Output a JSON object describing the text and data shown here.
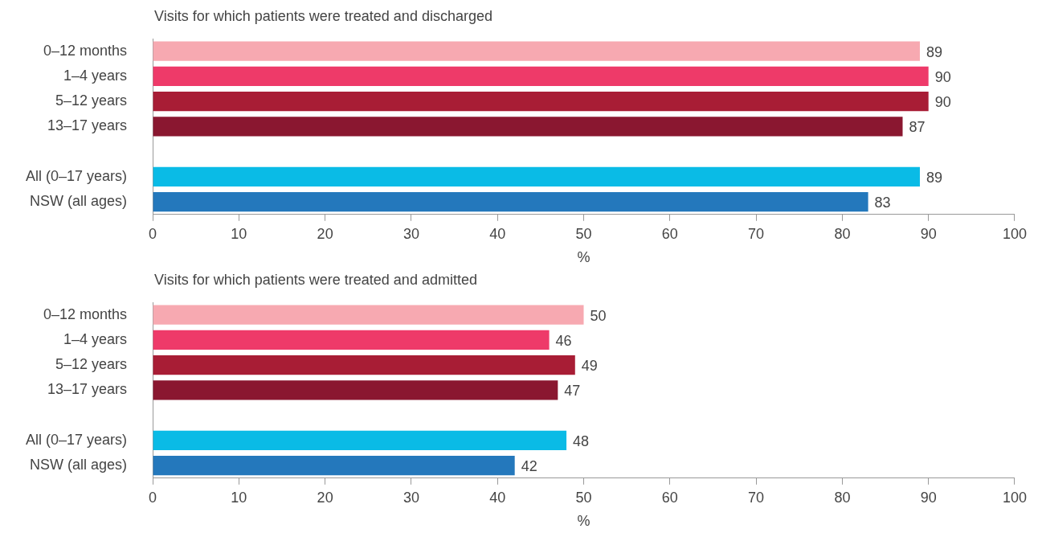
{
  "chart_data": [
    {
      "type": "bar",
      "orientation": "horizontal",
      "title": "Visits for which patients were treated and discharged",
      "xlabel": "%",
      "categories": [
        "0–12 months",
        "1–4 years",
        "5–12 years",
        "13–17 years",
        null,
        "All (0–17 years)",
        "NSW (all ages)"
      ],
      "values": [
        89,
        90,
        90,
        87,
        null,
        89,
        83
      ],
      "colors": [
        "#f7a9b1",
        "#ee3a69",
        "#a81d35",
        "#8a1730",
        null,
        "#0abbe6",
        "#2478bc"
      ],
      "xlim": [
        0,
        100
      ],
      "xticks": [
        0,
        10,
        20,
        30,
        40,
        50,
        60,
        70,
        80,
        90,
        100
      ],
      "data_labels": true,
      "grid": false,
      "legend": false
    },
    {
      "type": "bar",
      "orientation": "horizontal",
      "title": "Visits for which patients were treated and admitted",
      "xlabel": "%",
      "categories": [
        "0–12 months",
        "1–4 years",
        "5–12 years",
        "13–17 years",
        null,
        "All (0–17 years)",
        "NSW (all ages)"
      ],
      "values": [
        50,
        46,
        49,
        47,
        null,
        48,
        42
      ],
      "colors": [
        "#f7a9b1",
        "#ee3a69",
        "#a81d35",
        "#8a1730",
        null,
        "#0abbe6",
        "#2478bc"
      ],
      "xlim": [
        0,
        100
      ],
      "xticks": [
        0,
        10,
        20,
        30,
        40,
        50,
        60,
        70,
        80,
        90,
        100
      ],
      "data_labels": true,
      "grid": false,
      "legend": false
    }
  ]
}
